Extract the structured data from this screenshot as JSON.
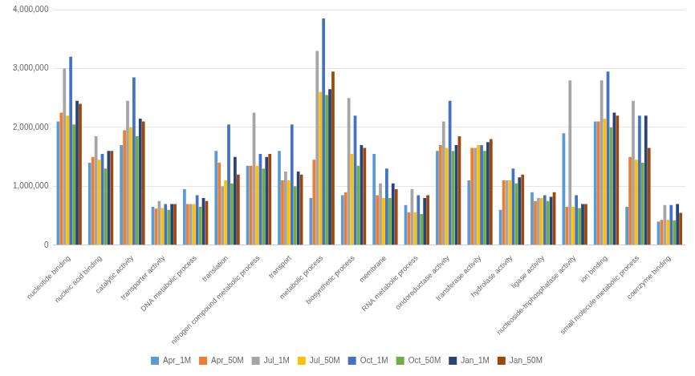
{
  "chart_data": {
    "type": "bar",
    "categories": [
      "nucleotide binding",
      "nucleic acid binding",
      "catalytic activity",
      "transporter activity",
      "DNA metabolic process",
      "translation",
      "nitrogen compound metabolic process",
      "transport",
      "metabolic process",
      "biosynthetic process",
      "membrane",
      "RNA metabolic process",
      "oxidoreductase activity",
      "transferase activity",
      "hydrolase activity",
      "ligase activity",
      "nucleoside-triphosphatase activity",
      "ion binding",
      "small molecule metabolic process",
      "coenzyme binding"
    ],
    "series": [
      {
        "name": "Apr_1M",
        "color": "#5B9BD5",
        "values": [
          2100000,
          1400000,
          1700000,
          650000,
          950000,
          1600000,
          1350000,
          1600000,
          800000,
          850000,
          1550000,
          680000,
          1600000,
          1100000,
          600000,
          900000,
          1900000,
          2100000,
          650000,
          400000
        ]
      },
      {
        "name": "Apr_50M",
        "color": "#ED7D31",
        "values": [
          2250000,
          1500000,
          1950000,
          620000,
          700000,
          1400000,
          1350000,
          1100000,
          1450000,
          900000,
          850000,
          560000,
          1700000,
          1650000,
          1100000,
          750000,
          650000,
          2100000,
          1500000,
          430000
        ]
      },
      {
        "name": "Jul_1M",
        "color": "#A5A5A5",
        "values": [
          3000000,
          1850000,
          2450000,
          750000,
          700000,
          1000000,
          2250000,
          1250000,
          3300000,
          2500000,
          1050000,
          950000,
          2100000,
          1650000,
          1100000,
          800000,
          2800000,
          2800000,
          2450000,
          680000
        ]
      },
      {
        "name": "Jul_50M",
        "color": "#FFC000",
        "values": [
          2200000,
          1450000,
          2000000,
          630000,
          700000,
          1100000,
          1350000,
          1100000,
          2600000,
          1550000,
          800000,
          560000,
          1650000,
          1700000,
          1100000,
          800000,
          650000,
          2150000,
          1450000,
          430000
        ]
      },
      {
        "name": "Oct_1M",
        "color": "#4472C4",
        "values": [
          3200000,
          1550000,
          2850000,
          700000,
          850000,
          2050000,
          1550000,
          2050000,
          3850000,
          2200000,
          1300000,
          850000,
          2450000,
          1700000,
          1300000,
          850000,
          850000,
          2950000,
          2200000,
          680000
        ]
      },
      {
        "name": "Oct_50M",
        "color": "#70AD47",
        "values": [
          2050000,
          1300000,
          1850000,
          600000,
          650000,
          1050000,
          1300000,
          1000000,
          2550000,
          1350000,
          800000,
          530000,
          1600000,
          1600000,
          1050000,
          750000,
          630000,
          2000000,
          1400000,
          420000
        ]
      },
      {
        "name": "Jan_1M",
        "color": "#264478",
        "values": [
          2450000,
          1600000,
          2150000,
          700000,
          800000,
          1500000,
          1500000,
          1250000,
          2650000,
          1700000,
          1050000,
          800000,
          1700000,
          1750000,
          1150000,
          820000,
          700000,
          2250000,
          2200000,
          700000
        ]
      },
      {
        "name": "Jan_50M",
        "color": "#9E480E",
        "values": [
          2400000,
          1600000,
          2100000,
          700000,
          750000,
          1200000,
          1550000,
          1200000,
          2950000,
          1650000,
          950000,
          850000,
          1850000,
          1800000,
          1200000,
          900000,
          700000,
          2200000,
          1650000,
          550000
        ]
      }
    ],
    "ylim": [
      0,
      4000000
    ],
    "yticks": [
      0,
      {
        "value": 1000000,
        "label": "1,000,000"
      },
      {
        "value": 2000000,
        "label": "2,000,000"
      },
      {
        "value": 3000000,
        "label": "3,000,000"
      },
      {
        "value": 4000000,
        "label": "4,000,000"
      }
    ],
    "grid": true,
    "legend": "bottom"
  }
}
